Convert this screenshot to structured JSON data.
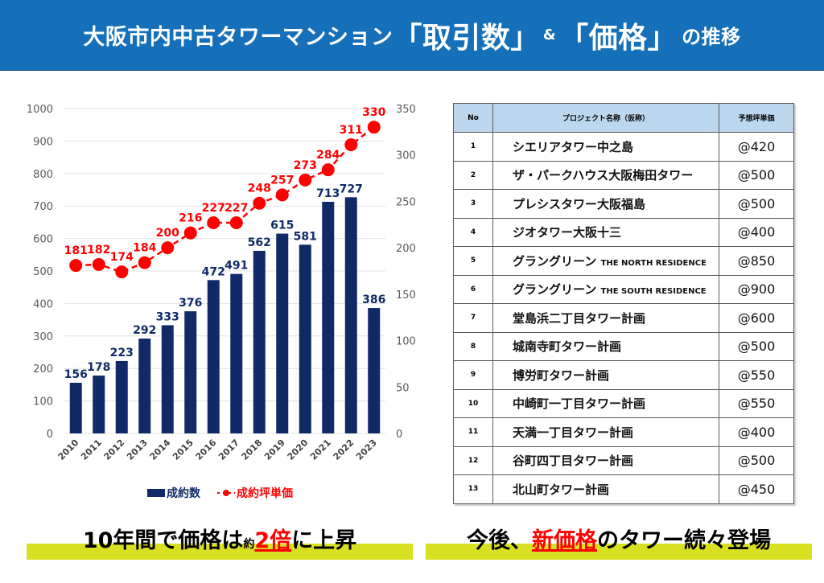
{
  "header": {
    "title_part1": "大阪市内中古タワーマンション",
    "title_q1": "「取引数」",
    "title_amp": "&",
    "title_q2": "「価格」",
    "title_part2": "の推移",
    "background_color": "#1570b9"
  },
  "chart_data": {
    "type": "bar+line",
    "title": "",
    "categories": [
      "2010",
      "2011",
      "2012",
      "2013",
      "2014",
      "2015",
      "2016",
      "2017",
      "2018",
      "2019",
      "2020",
      "2021",
      "2022",
      "2023"
    ],
    "series": [
      {
        "name": "成約数",
        "type": "bar",
        "axis": "left",
        "color": "#0f2a66",
        "values": [
          156,
          178,
          223,
          292,
          333,
          376,
          472,
          491,
          562,
          615,
          581,
          713,
          727,
          386
        ]
      },
      {
        "name": "成約坪単価",
        "type": "line",
        "axis": "right",
        "color": "#ff0000",
        "style": "dashed-with-markers",
        "values": [
          181,
          182,
          174,
          184,
          200,
          216,
          227,
          227,
          248,
          257,
          273,
          284,
          311,
          330
        ]
      }
    ],
    "y_left": {
      "range": [
        0,
        1000
      ],
      "ticks": [
        0,
        100,
        200,
        300,
        400,
        500,
        600,
        700,
        800,
        900,
        1000
      ]
    },
    "y_right": {
      "range": [
        0,
        350
      ],
      "ticks": [
        0,
        50,
        100,
        150,
        200,
        250,
        300,
        350
      ]
    },
    "grid": true,
    "legend": {
      "placement": "bottom",
      "entries": [
        "成約数",
        "成約坪単価"
      ]
    },
    "data_labels": true
  },
  "table": {
    "headers": [
      "No",
      "プロジェクト名称（仮称）",
      "予想坪単価"
    ],
    "rows": [
      {
        "no": "1",
        "name": "シエリアタワー中之島",
        "name_en": "",
        "price": "@420"
      },
      {
        "no": "2",
        "name": "ザ・パークハウス大阪梅田タワー",
        "name_en": "",
        "price": "@500"
      },
      {
        "no": "3",
        "name": "プレシスタワー大阪福島",
        "name_en": "",
        "price": "@500"
      },
      {
        "no": "4",
        "name": "ジオタワー大阪十三",
        "name_en": "",
        "price": "@400"
      },
      {
        "no": "5",
        "name": "グラングリーン",
        "name_en": "THE NORTH RESIDENCE",
        "price": "@850"
      },
      {
        "no": "6",
        "name": "グラングリーン",
        "name_en": "THE SOUTH RESIDENCE",
        "price": "@900"
      },
      {
        "no": "7",
        "name": "堂島浜二丁目タワー計画",
        "name_en": "",
        "price": "@600"
      },
      {
        "no": "8",
        "name": "城南寺町タワー計画",
        "name_en": "",
        "price": "@500"
      },
      {
        "no": "9",
        "name": "博労町タワー計画",
        "name_en": "",
        "price": "@550"
      },
      {
        "no": "10",
        "name": "中崎町一丁目タワー計画",
        "name_en": "",
        "price": "@550"
      },
      {
        "no": "11",
        "name": "天満一丁目タワー計画",
        "name_en": "",
        "price": "@400"
      },
      {
        "no": "12",
        "name": "谷町四丁目タワー計画",
        "name_en": "",
        "price": "@500"
      },
      {
        "no": "13",
        "name": "北山町タワー計画",
        "name_en": "",
        "price": "@450"
      }
    ]
  },
  "captions": {
    "left": {
      "pre": "10年間で価格は",
      "small": "約",
      "emph": "2倍",
      "post": "に上昇"
    },
    "right": {
      "pre": "今後、",
      "emph": "新価格",
      "post": "のタワー続々登場"
    },
    "highlight_color": "#d9e021",
    "emphasis_color": "#ff0000"
  }
}
